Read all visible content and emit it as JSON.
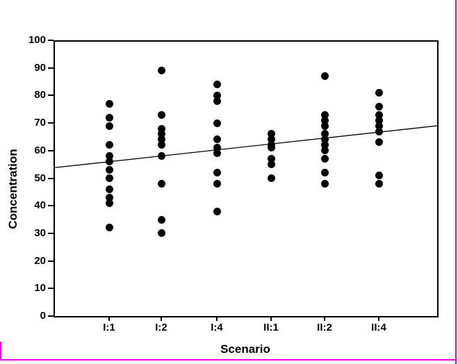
{
  "window": {
    "background_color": "#FFFFFF",
    "border_color": "#EE00EE"
  },
  "chart_data": {
    "type": "scatter",
    "title": "",
    "xlabel": "Scenario",
    "ylabel": "Concentration",
    "categories": [
      "I:1",
      "I:2",
      "I:4",
      "II:1",
      "II:2",
      "II:4"
    ],
    "y_ticks": [
      0,
      10,
      20,
      30,
      40,
      50,
      60,
      70,
      80,
      90,
      100
    ],
    "ylim": [
      0,
      100
    ],
    "grid": false,
    "legend": false,
    "frame": "full-box",
    "marker": {
      "shape": "filled-circle",
      "color": "#000000"
    },
    "series": [
      {
        "name": "I:1",
        "values": [
          77,
          72,
          69,
          62,
          58,
          56,
          53,
          50,
          46,
          43,
          41,
          32
        ]
      },
      {
        "name": "I:2",
        "values": [
          89,
          73,
          68,
          66,
          64,
          62,
          58,
          48,
          35,
          30
        ]
      },
      {
        "name": "I:4",
        "values": [
          84,
          80,
          78,
          70,
          64,
          61,
          59,
          52,
          48,
          38
        ]
      },
      {
        "name": "II:1",
        "values": [
          66,
          64,
          62,
          61,
          57,
          55,
          50
        ]
      },
      {
        "name": "II:2",
        "values": [
          87,
          73,
          71,
          69,
          66,
          64,
          62,
          60,
          57,
          52,
          48
        ]
      },
      {
        "name": "II:4",
        "values": [
          81,
          76,
          73,
          71,
          69,
          67,
          63,
          51,
          48
        ]
      }
    ],
    "trend_line": {
      "description": "linear fit across all scenarios",
      "start_value": 53.8,
      "end_value": 69.0,
      "color": "#000000"
    }
  }
}
